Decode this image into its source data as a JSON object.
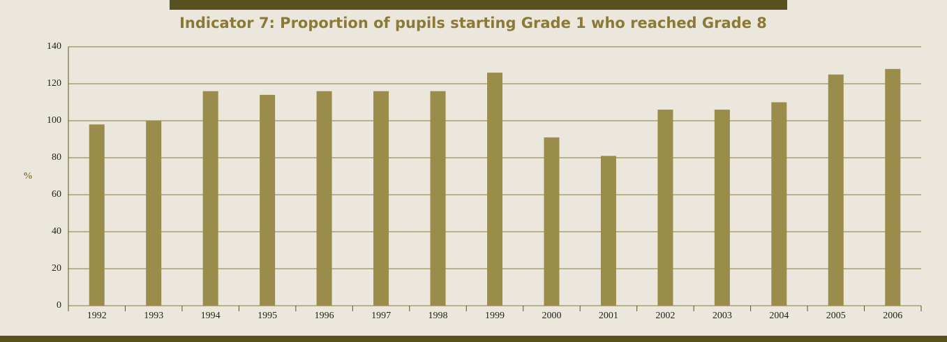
{
  "chart_data": {
    "type": "bar",
    "title": "Indicator 7: Proportion of pupils starting Grade 1 who reached Grade 8",
    "y_label": "%",
    "categories": [
      "1992",
      "1993",
      "1994",
      "1995",
      "1996",
      "1997",
      "1998",
      "1999",
      "2000",
      "2001",
      "2002",
      "2003",
      "2004",
      "2005",
      "2006"
    ],
    "values": [
      98,
      100,
      116,
      114,
      116,
      116,
      116,
      126,
      91,
      81,
      106,
      106,
      110,
      125,
      128
    ],
    "color": "#9a8c4a",
    "ylim": [
      0,
      140
    ],
    "yticks": [
      0,
      20,
      40,
      60,
      80,
      100,
      120,
      140
    ],
    "grid": true
  }
}
